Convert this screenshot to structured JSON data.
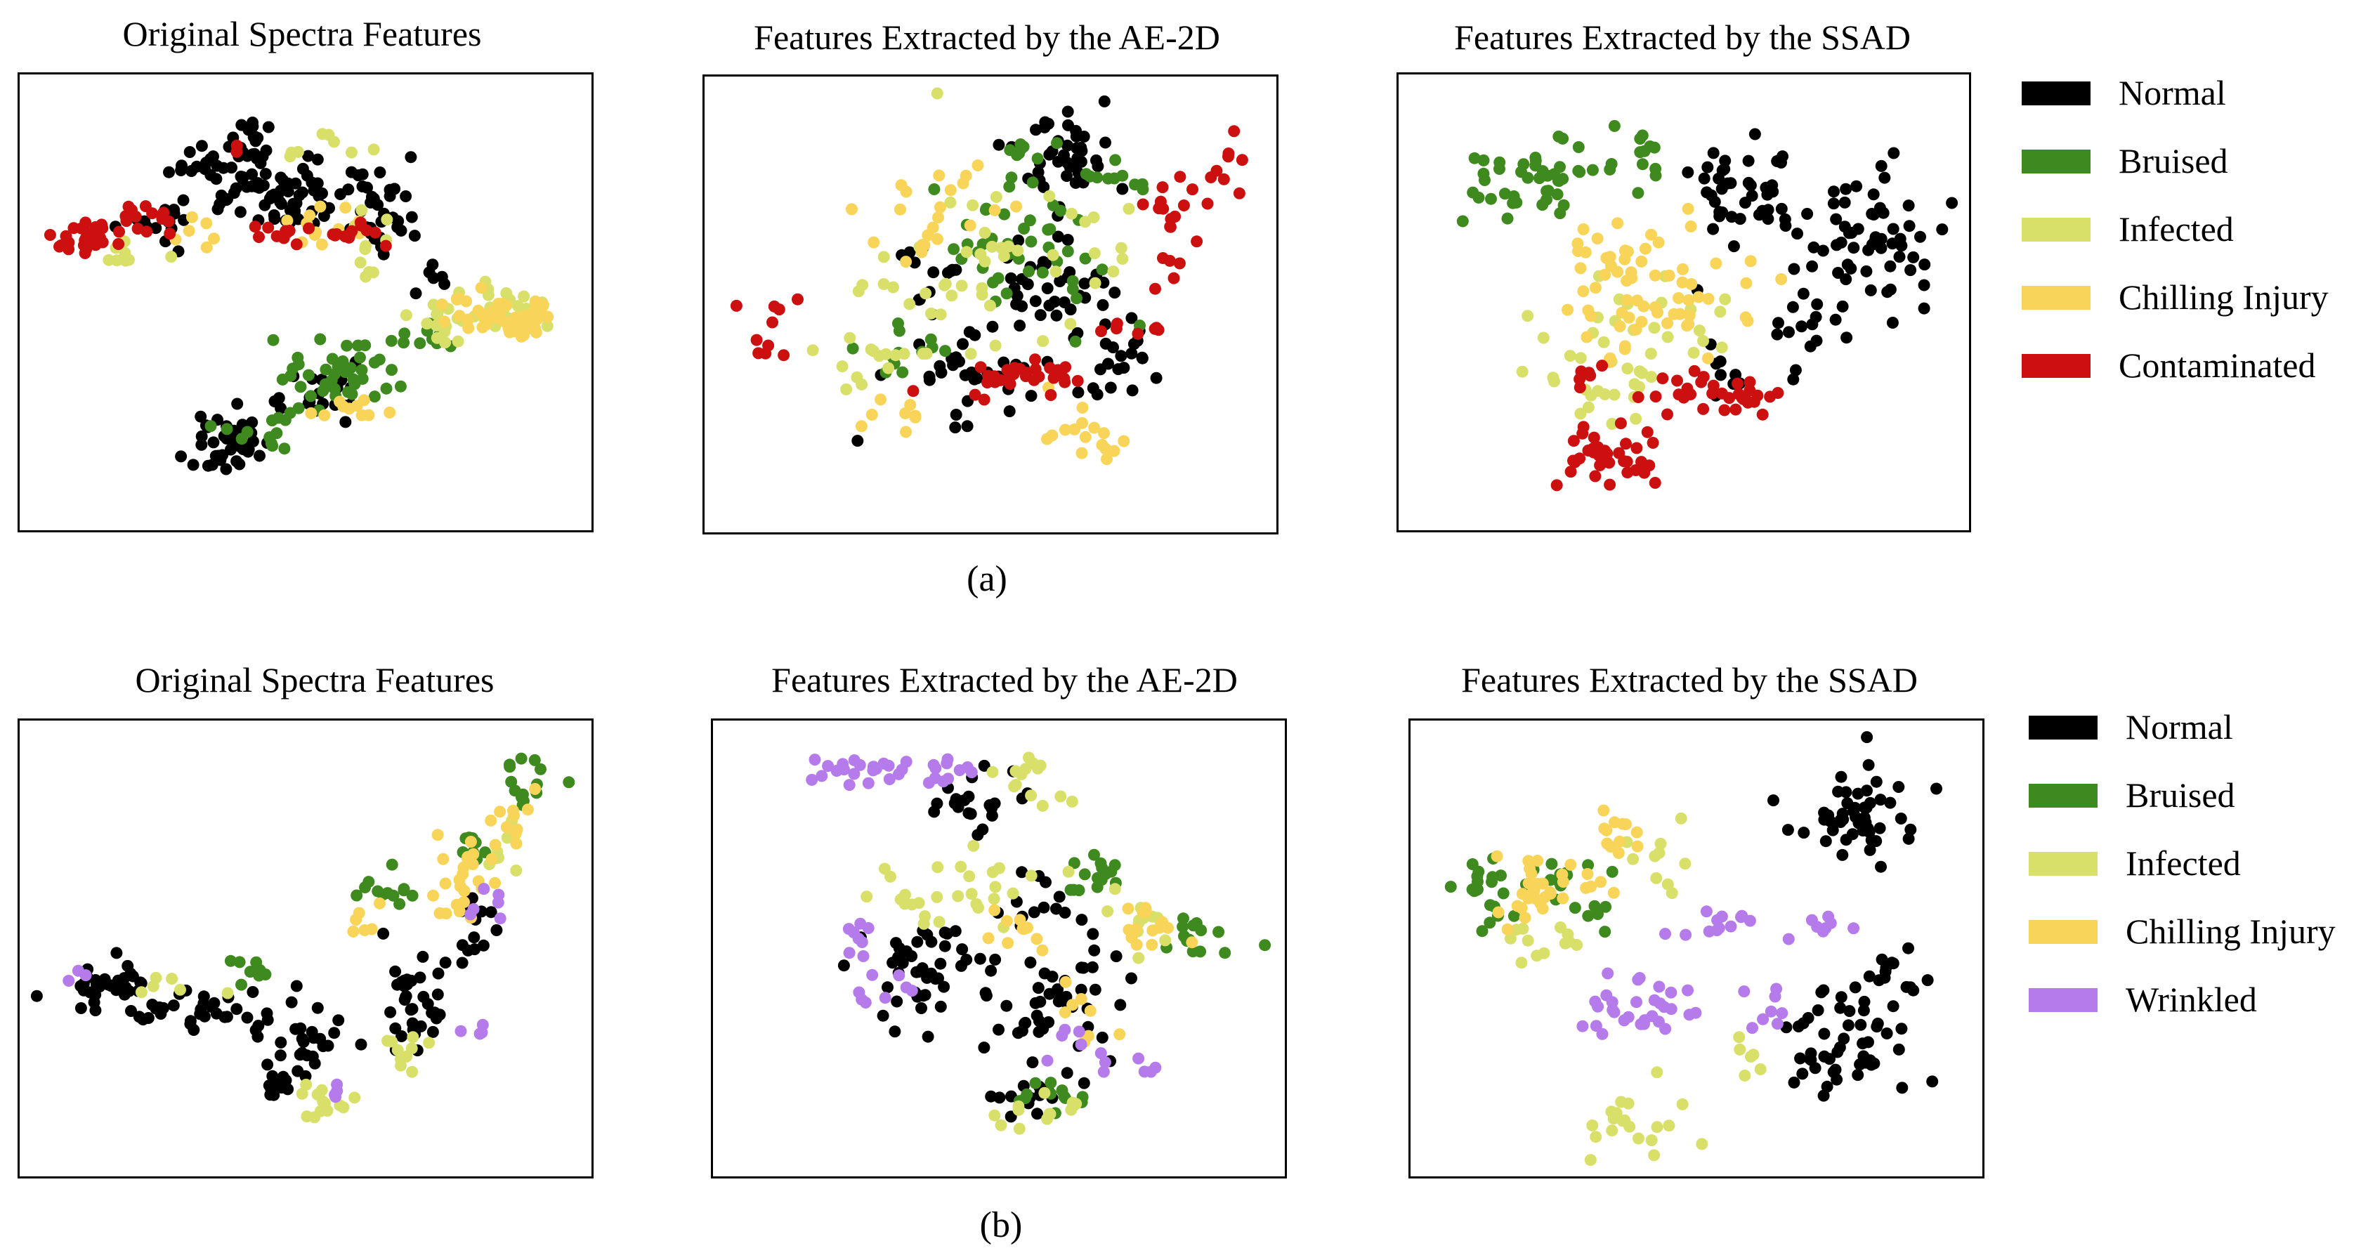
{
  "colors": {
    "Normal": "#000000",
    "Bruised": "#3f8a1f",
    "Infected": "#d8e06a",
    "Chilling Injury": "#f8d458",
    "Contaminated": "#cc0f0f",
    "Wrinkled": "#b57bea"
  },
  "rows": [
    {
      "caption": "(a)",
      "legend": [
        "Normal",
        "Bruised",
        "Infected",
        "Chilling Injury",
        "Contaminated"
      ]
    },
    {
      "caption": "(b)",
      "legend": [
        "Normal",
        "Bruised",
        "Infected",
        "Chilling Injury",
        "Wrinkled"
      ]
    }
  ],
  "chart_data": [
    {
      "type": "scatter",
      "title": "Original Spectra Features",
      "xlim": [
        0,
        1
      ],
      "ylim": [
        0,
        1
      ],
      "series": [
        {
          "name": "Normal",
          "clusters": [
            [
              0.37,
              0.78,
              0.06,
              0.05,
              45
            ],
            [
              0.47,
              0.73,
              0.07,
              0.05,
              45
            ],
            [
              0.63,
              0.69,
              0.04,
              0.06,
              30
            ],
            [
              0.22,
              0.69,
              0.05,
              0.04,
              14
            ],
            [
              0.4,
              0.86,
              0.04,
              0.03,
              16
            ],
            [
              0.37,
              0.19,
              0.04,
              0.04,
              45
            ],
            [
              0.54,
              0.3,
              0.06,
              0.04,
              20
            ],
            [
              0.73,
              0.54,
              0.03,
              0.03,
              6
            ]
          ]
        },
        {
          "name": "Bruised",
          "clusters": [
            [
              0.55,
              0.34,
              0.07,
              0.05,
              45
            ],
            [
              0.44,
              0.22,
              0.05,
              0.03,
              12
            ],
            [
              0.72,
              0.42,
              0.03,
              0.03,
              10
            ]
          ]
        },
        {
          "name": "Infected",
          "clusters": [
            [
              0.75,
              0.47,
              0.04,
              0.04,
              18
            ],
            [
              0.86,
              0.49,
              0.05,
              0.05,
              22
            ],
            [
              0.52,
              0.85,
              0.06,
              0.02,
              8
            ],
            [
              0.62,
              0.64,
              0.04,
              0.05,
              10
            ],
            [
              0.2,
              0.6,
              0.05,
              0.02,
              8
            ]
          ]
        },
        {
          "name": "Chilling Injury",
          "clusters": [
            [
              0.8,
              0.47,
              0.05,
              0.03,
              25
            ],
            [
              0.88,
              0.46,
              0.03,
              0.02,
              30
            ],
            [
              0.53,
              0.66,
              0.05,
              0.03,
              12
            ],
            [
              0.58,
              0.27,
              0.05,
              0.03,
              10
            ],
            [
              0.3,
              0.66,
              0.03,
              0.03,
              6
            ]
          ]
        },
        {
          "name": "Contaminated",
          "clusters": [
            [
              0.12,
              0.65,
              0.04,
              0.02,
              28
            ],
            [
              0.21,
              0.68,
              0.03,
              0.02,
              12
            ],
            [
              0.46,
              0.65,
              0.03,
              0.02,
              10
            ],
            [
              0.58,
              0.65,
              0.03,
              0.02,
              12
            ],
            [
              0.39,
              0.84,
              0.01,
              0.01,
              2
            ]
          ]
        }
      ]
    },
    {
      "type": "scatter",
      "title": "Features Extracted by the AE-2D",
      "xlim": [
        0,
        1
      ],
      "ylim": [
        0,
        1
      ],
      "series": [
        {
          "name": "Normal",
          "clusters": [
            [
              0.62,
              0.83,
              0.06,
              0.06,
              40
            ],
            [
              0.6,
              0.52,
              0.07,
              0.1,
              45
            ],
            [
              0.45,
              0.33,
              0.07,
              0.06,
              30
            ],
            [
              0.7,
              0.38,
              0.05,
              0.04,
              20
            ],
            [
              0.4,
              0.55,
              0.06,
              0.06,
              12
            ]
          ]
        },
        {
          "name": "Bruised",
          "clusters": [
            [
              0.55,
              0.62,
              0.09,
              0.1,
              45
            ],
            [
              0.35,
              0.4,
              0.05,
              0.04,
              12
            ],
            [
              0.7,
              0.75,
              0.04,
              0.04,
              10
            ],
            [
              0.55,
              0.85,
              0.03,
              0.02,
              6
            ]
          ]
        },
        {
          "name": "Infected",
          "clusters": [
            [
              0.45,
              0.55,
              0.12,
              0.14,
              40
            ],
            [
              0.3,
              0.38,
              0.05,
              0.04,
              12
            ],
            [
              0.68,
              0.62,
              0.06,
              0.06,
              10
            ]
          ]
        },
        {
          "name": "Chilling Injury",
          "clusters": [
            [
              0.4,
              0.7,
              0.08,
              0.06,
              22
            ],
            [
              0.65,
              0.23,
              0.06,
              0.05,
              16
            ],
            [
              0.35,
              0.27,
              0.05,
              0.03,
              8
            ]
          ]
        },
        {
          "name": "Contaminated",
          "clusters": [
            [
              0.55,
              0.34,
              0.07,
              0.03,
              30
            ],
            [
              0.82,
              0.68,
              0.04,
              0.08,
              18
            ],
            [
              0.92,
              0.83,
              0.02,
              0.05,
              8
            ],
            [
              0.1,
              0.45,
              0.05,
              0.06,
              10
            ],
            [
              0.75,
              0.45,
              0.04,
              0.04,
              8
            ]
          ]
        }
      ]
    },
    {
      "type": "scatter",
      "title": "Features Extracted by the SSAD",
      "xlim": [
        0,
        1
      ],
      "ylim": [
        0,
        1
      ],
      "series": [
        {
          "name": "Normal",
          "clusters": [
            [
              0.62,
              0.75,
              0.08,
              0.08,
              45
            ],
            [
              0.83,
              0.63,
              0.07,
              0.1,
              55
            ],
            [
              0.71,
              0.45,
              0.04,
              0.07,
              16
            ],
            [
              0.57,
              0.35,
              0.04,
              0.04,
              8
            ]
          ]
        },
        {
          "name": "Bruised",
          "clusters": [
            [
              0.25,
              0.78,
              0.08,
              0.05,
              45
            ],
            [
              0.43,
              0.82,
              0.04,
              0.03,
              10
            ]
          ]
        },
        {
          "name": "Infected",
          "clusters": [
            [
              0.35,
              0.35,
              0.06,
              0.09,
              30
            ],
            [
              0.47,
              0.45,
              0.06,
              0.06,
              15
            ]
          ]
        },
        {
          "name": "Chilling Injury",
          "clusters": [
            [
              0.45,
              0.52,
              0.11,
              0.09,
              55
            ],
            [
              0.35,
              0.62,
              0.05,
              0.04,
              12
            ]
          ]
        },
        {
          "name": "Contaminated",
          "clusters": [
            [
              0.37,
              0.16,
              0.06,
              0.04,
              35
            ],
            [
              0.53,
              0.3,
              0.07,
              0.03,
              20
            ],
            [
              0.62,
              0.29,
              0.03,
              0.03,
              12
            ],
            [
              0.33,
              0.34,
              0.02,
              0.02,
              6
            ]
          ]
        }
      ]
    },
    {
      "type": "scatter",
      "title": "Original Spectra Features",
      "xlim": [
        0,
        1
      ],
      "ylim": [
        0,
        1
      ],
      "series": [
        {
          "name": "Normal",
          "clusters": [
            [
              0.15,
              0.42,
              0.06,
              0.03,
              35
            ],
            [
              0.3,
              0.36,
              0.07,
              0.03,
              30
            ],
            [
              0.5,
              0.3,
              0.05,
              0.05,
              30
            ],
            [
              0.69,
              0.41,
              0.04,
              0.08,
              35
            ],
            [
              0.78,
              0.55,
              0.03,
              0.06,
              15
            ],
            [
              0.45,
              0.2,
              0.03,
              0.03,
              12
            ]
          ]
        },
        {
          "name": "Bruised",
          "clusters": [
            [
              0.88,
              0.85,
              0.03,
              0.05,
              15
            ],
            [
              0.65,
              0.63,
              0.04,
              0.03,
              12
            ],
            [
              0.4,
              0.45,
              0.04,
              0.02,
              8
            ],
            [
              0.78,
              0.72,
              0.03,
              0.04,
              8
            ]
          ]
        },
        {
          "name": "Infected",
          "clusters": [
            [
              0.53,
              0.16,
              0.05,
              0.03,
              14
            ],
            [
              0.68,
              0.28,
              0.03,
              0.04,
              10
            ],
            [
              0.25,
              0.42,
              0.04,
              0.02,
              6
            ],
            [
              0.84,
              0.72,
              0.03,
              0.05,
              8
            ]
          ]
        },
        {
          "name": "Chilling Injury",
          "clusters": [
            [
              0.78,
              0.65,
              0.04,
              0.06,
              25
            ],
            [
              0.86,
              0.8,
              0.03,
              0.04,
              10
            ],
            [
              0.6,
              0.55,
              0.03,
              0.03,
              6
            ]
          ]
        },
        {
          "name": "Wrinkled",
          "clusters": [
            [
              0.55,
              0.18,
              0.02,
              0.02,
              4
            ],
            [
              0.83,
              0.58,
              0.03,
              0.03,
              6
            ],
            [
              0.11,
              0.44,
              0.02,
              0.01,
              3
            ],
            [
              0.8,
              0.32,
              0.02,
              0.02,
              4
            ]
          ]
        }
      ]
    },
    {
      "type": "scatter",
      "title": "Features Extracted by the AE-2D",
      "xlim": [
        0,
        1
      ],
      "ylim": [
        0,
        1
      ],
      "series": [
        {
          "name": "Normal",
          "clusters": [
            [
              0.44,
              0.82,
              0.05,
              0.04,
              22
            ],
            [
              0.37,
              0.45,
              0.08,
              0.08,
              45
            ],
            [
              0.6,
              0.38,
              0.07,
              0.1,
              45
            ],
            [
              0.57,
              0.17,
              0.05,
              0.04,
              18
            ],
            [
              0.55,
              0.6,
              0.04,
              0.04,
              12
            ]
          ]
        },
        {
          "name": "Bruised",
          "clusters": [
            [
              0.67,
              0.65,
              0.04,
              0.03,
              16
            ],
            [
              0.84,
              0.52,
              0.04,
              0.03,
              15
            ],
            [
              0.6,
              0.18,
              0.05,
              0.03,
              12
            ]
          ]
        },
        {
          "name": "Infected",
          "clusters": [
            [
              0.4,
              0.62,
              0.09,
              0.06,
              28
            ],
            [
              0.58,
              0.86,
              0.06,
              0.04,
              14
            ],
            [
              0.75,
              0.55,
              0.06,
              0.05,
              12
            ],
            [
              0.55,
              0.15,
              0.05,
              0.03,
              12
            ]
          ]
        },
        {
          "name": "Chilling Injury",
          "clusters": [
            [
              0.78,
              0.55,
              0.04,
              0.03,
              14
            ],
            [
              0.55,
              0.55,
              0.05,
              0.05,
              10
            ],
            [
              0.65,
              0.36,
              0.04,
              0.04,
              8
            ]
          ]
        },
        {
          "name": "Wrinkled",
          "clusters": [
            [
              0.28,
              0.89,
              0.06,
              0.02,
              22
            ],
            [
              0.42,
              0.89,
              0.04,
              0.02,
              10
            ],
            [
              0.26,
              0.53,
              0.02,
              0.03,
              8
            ],
            [
              0.72,
              0.24,
              0.03,
              0.03,
              6
            ],
            [
              0.3,
              0.4,
              0.03,
              0.04,
              8
            ],
            [
              0.62,
              0.3,
              0.03,
              0.03,
              6
            ]
          ]
        }
      ]
    },
    {
      "type": "scatter",
      "title": "Features Extracted by the SSAD",
      "xlim": [
        0,
        1
      ],
      "ylim": [
        0,
        1
      ],
      "series": [
        {
          "name": "Normal",
          "clusters": [
            [
              0.78,
              0.8,
              0.08,
              0.07,
              50
            ],
            [
              0.77,
              0.3,
              0.08,
              0.07,
              50
            ],
            [
              0.85,
              0.44,
              0.04,
              0.04,
              14
            ]
          ]
        },
        {
          "name": "Bruised",
          "clusters": [
            [
              0.12,
              0.62,
              0.04,
              0.05,
              20
            ],
            [
              0.26,
              0.66,
              0.05,
              0.04,
              12
            ],
            [
              0.33,
              0.6,
              0.03,
              0.03,
              6
            ]
          ]
        },
        {
          "name": "Infected",
          "clusters": [
            [
              0.38,
              0.1,
              0.05,
              0.04,
              20
            ],
            [
              0.22,
              0.5,
              0.05,
              0.04,
              12
            ],
            [
              0.45,
              0.7,
              0.04,
              0.05,
              10
            ],
            [
              0.58,
              0.25,
              0.03,
              0.03,
              6
            ]
          ]
        },
        {
          "name": "Chilling Injury",
          "clusters": [
            [
              0.25,
              0.64,
              0.06,
              0.04,
              25
            ],
            [
              0.37,
              0.75,
              0.04,
              0.03,
              12
            ],
            [
              0.2,
              0.58,
              0.04,
              0.03,
              8
            ]
          ]
        },
        {
          "name": "Wrinkled",
          "clusters": [
            [
              0.4,
              0.36,
              0.07,
              0.04,
              30
            ],
            [
              0.55,
              0.55,
              0.05,
              0.02,
              12
            ],
            [
              0.72,
              0.55,
              0.04,
              0.02,
              8
            ],
            [
              0.62,
              0.38,
              0.03,
              0.04,
              8
            ]
          ]
        }
      ]
    }
  ]
}
